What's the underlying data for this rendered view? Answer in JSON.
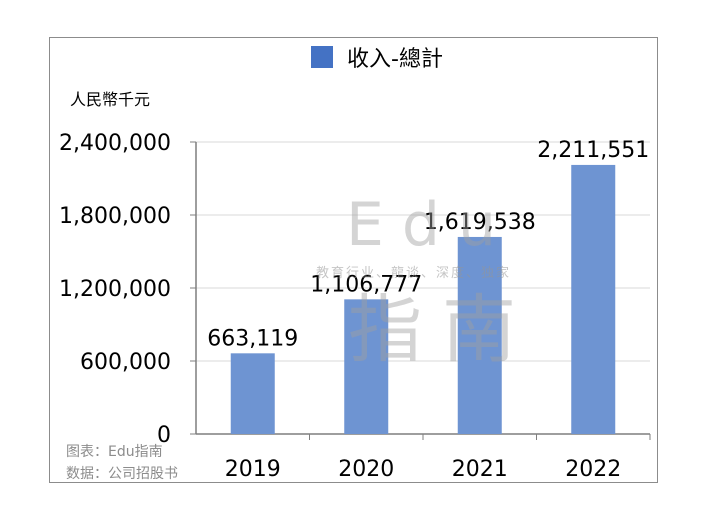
{
  "chart_data": {
    "type": "bar",
    "categories": [
      "2019",
      "2020",
      "2021",
      "2022"
    ],
    "series": [
      {
        "name": "收入-總計",
        "values": [
          663119,
          1106777,
          1619538,
          2211551
        ]
      }
    ],
    "data_labels": [
      "663,119",
      "1,106,777",
      "1,619,538",
      "2,211,551"
    ],
    "yticks": [
      0,
      600000,
      1200000,
      1800000,
      2400000
    ],
    "ytick_labels": [
      "0",
      "600,000",
      "1,200,000",
      "1,800,000",
      "2,400,000"
    ],
    "ylim": [
      0,
      2400000
    ],
    "ylabel": "人民幣千元",
    "grid": true,
    "legend_position": "top",
    "colors": {
      "bar": "#6e94d2",
      "legend": "#4472c4",
      "grid": "#d9d9d9",
      "axis": "#7f7f7f"
    }
  },
  "watermark": {
    "word": "Edu",
    "tagline": "教育行业、龍谈、深度、独家",
    "chinese": "指南"
  },
  "footnotes": {
    "source_chart": "图表：Edu指南",
    "source_data": "数据：公司招股书"
  }
}
